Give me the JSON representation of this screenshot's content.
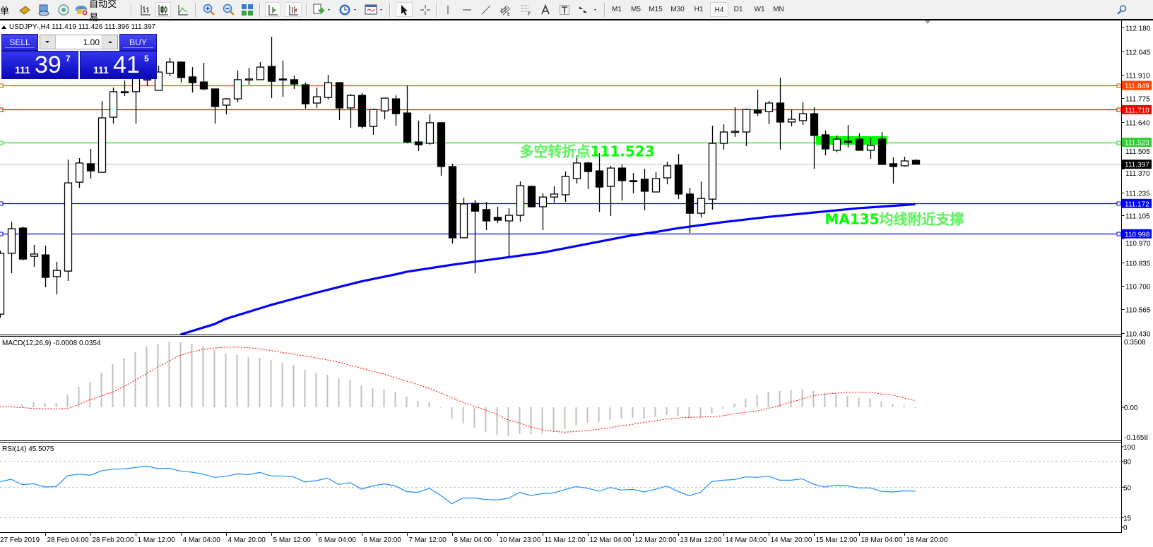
{
  "toolbar": {
    "menu_fragment": "单",
    "auto_trading_label": "自动交易",
    "icons": [
      "market-watch-book-icon",
      "navigator-icon",
      "signals-icon",
      "auto-trading-icon",
      "bar-chart-icon",
      "candlestick-chart-icon",
      "line-chart-icon",
      "zoom-in-icon",
      "zoom-out-icon",
      "tile-windows-icon",
      "auto-scroll-icon",
      "chart-shift-icon",
      "new-indicator-icon",
      "periods-clock-icon",
      "templates-icon",
      "cursor-icon",
      "crosshair-icon",
      "vertical-line-icon",
      "horizontal-line-icon",
      "trendline-icon",
      "fibonacci-channel-icon",
      "fibonacci-retracement-icon",
      "text-icon",
      "text-label-icon",
      "arrows-icon",
      "search-icon"
    ],
    "timeframes": [
      "M1",
      "M5",
      "M15",
      "M30",
      "H1",
      "H4",
      "D1",
      "W1",
      "MN"
    ],
    "active_timeframe": "H4"
  },
  "chart": {
    "header": "USDJPY-,H4  111.419 111.426 111.396 111.397",
    "symbol": "USDJPY-",
    "timeframe": "H4",
    "ohlc": {
      "open": 111.419,
      "high": 111.426,
      "low": 111.396,
      "close": 111.397
    }
  },
  "one_click": {
    "sell_label": "SELL",
    "buy_label": "BUY",
    "lot": "1.00",
    "sell_price": {
      "prefix": "111",
      "big": "39",
      "pip": "7"
    },
    "buy_price": {
      "prefix": "111",
      "big": "41",
      "pip": "5"
    }
  },
  "colors": {
    "bull_body": "#ffffff",
    "bear_body": "#000000",
    "ma": "#0000ff",
    "macd_hist": "#c0c0c0",
    "macd_signal": "#ff0000",
    "rsi": "#1e90ff",
    "annotation": "#00ff00",
    "bid_line": "#c0c0c0"
  },
  "chart_data": {
    "type": "candlestick",
    "price_axis": {
      "range": [
        110.43,
        112.18
      ],
      "ticks": [
        "112.180",
        "112.045",
        "111.910",
        "111.775",
        "111.640",
        "111.505",
        "111.370",
        "111.235",
        "111.105",
        "110.970",
        "110.835",
        "110.700",
        "110.565",
        "110.430"
      ]
    },
    "candles_ohlc": [
      [
        110.537,
        110.902,
        110.517,
        110.886
      ],
      [
        110.886,
        111.068,
        110.772,
        111.027
      ],
      [
        111.031,
        111.039,
        110.845,
        110.853
      ],
      [
        110.869,
        110.934,
        110.809,
        110.882
      ],
      [
        110.877,
        110.93,
        110.691,
        110.748
      ],
      [
        110.752,
        110.837,
        110.651,
        110.788
      ],
      [
        110.784,
        111.424,
        110.728,
        111.29
      ],
      [
        111.294,
        111.432,
        111.262,
        111.404
      ],
      [
        111.4,
        111.485,
        111.315,
        111.359
      ],
      [
        111.351,
        111.76,
        111.351,
        111.663
      ],
      [
        111.667,
        111.837,
        111.63,
        111.813
      ],
      [
        111.813,
        111.877,
        111.788,
        111.809
      ],
      [
        111.813,
        111.955,
        111.63,
        111.918
      ],
      [
        111.882,
        111.914,
        111.845,
        111.886
      ],
      [
        111.821,
        111.962,
        111.821,
        111.926
      ],
      [
        111.918,
        112.007,
        111.902,
        111.983
      ],
      [
        111.983,
        111.987,
        111.865,
        111.894
      ],
      [
        111.898,
        111.954,
        111.809,
        111.865
      ],
      [
        111.869,
        111.979,
        111.821,
        111.829
      ],
      [
        111.829,
        111.829,
        111.63,
        111.728
      ],
      [
        111.736,
        111.776,
        111.683,
        111.772
      ],
      [
        111.772,
        111.934,
        111.752,
        111.882
      ],
      [
        111.882,
        111.95,
        111.853,
        111.886
      ],
      [
        111.882,
        111.983,
        111.882,
        111.954
      ],
      [
        111.958,
        112.128,
        111.776,
        111.873
      ],
      [
        111.886,
        111.991,
        111.784,
        111.882
      ],
      [
        111.882,
        111.906,
        111.829,
        111.857
      ],
      [
        111.853,
        111.865,
        111.716,
        111.744
      ],
      [
        111.748,
        111.837,
        111.72,
        111.784
      ],
      [
        111.78,
        111.91,
        111.768,
        111.865
      ],
      [
        111.865,
        111.869,
        111.651,
        111.72
      ],
      [
        111.72,
        111.8,
        111.606,
        111.792
      ],
      [
        111.792,
        111.805,
        111.602,
        111.614
      ],
      [
        111.614,
        111.716,
        111.566,
        111.711
      ],
      [
        111.703,
        111.78,
        111.655,
        111.776
      ],
      [
        111.772,
        111.792,
        111.618,
        111.687
      ],
      [
        111.691,
        111.849,
        111.517,
        111.525
      ],
      [
        111.525,
        111.647,
        111.473,
        111.509
      ],
      [
        111.517,
        111.683,
        111.509,
        111.635
      ],
      [
        111.635,
        111.639,
        111.331,
        111.384
      ],
      [
        111.384,
        111.4,
        110.942,
        110.975
      ],
      [
        110.975,
        111.205,
        110.975,
        111.169
      ],
      [
        111.173,
        111.193,
        110.772,
        111.128
      ],
      [
        111.137,
        111.181,
        111.019,
        111.072
      ],
      [
        111.092,
        111.153,
        111.06,
        111.076
      ],
      [
        111.072,
        111.145,
        110.869,
        111.104
      ],
      [
        111.104,
        111.298,
        111.068,
        111.274
      ],
      [
        111.27,
        111.274,
        111.149,
        111.153
      ],
      [
        111.153,
        111.23,
        111.019,
        111.209
      ],
      [
        111.209,
        111.27,
        111.177,
        111.226
      ],
      [
        111.222,
        111.355,
        111.181,
        111.327
      ],
      [
        111.315,
        111.448,
        111.286,
        111.404
      ],
      [
        111.404,
        111.412,
        111.254,
        111.355
      ],
      [
        111.359,
        111.46,
        111.124,
        111.266
      ],
      [
        111.27,
        111.388,
        111.1,
        111.375
      ],
      [
        111.375,
        111.396,
        111.189,
        111.303
      ],
      [
        111.303,
        111.347,
        111.23,
        111.299
      ],
      [
        111.311,
        111.371,
        111.133,
        111.242
      ],
      [
        111.238,
        111.351,
        111.238,
        111.315
      ],
      [
        111.319,
        111.412,
        111.282,
        111.388
      ],
      [
        111.392,
        111.456,
        111.197,
        111.226
      ],
      [
        111.226,
        111.262,
        111.003,
        111.116
      ],
      [
        111.116,
        111.298,
        111.092,
        111.201
      ],
      [
        111.197,
        111.618,
        111.137,
        111.517
      ],
      [
        111.517,
        111.626,
        111.481,
        111.582
      ],
      [
        111.582,
        111.724,
        111.554,
        111.586
      ],
      [
        111.582,
        111.716,
        111.501,
        111.711
      ],
      [
        111.707,
        111.825,
        111.675,
        111.691
      ],
      [
        111.699,
        111.76,
        111.626,
        111.748
      ],
      [
        111.748,
        111.894,
        111.481,
        111.639
      ],
      [
        111.639,
        111.711,
        111.614,
        111.655
      ],
      [
        111.647,
        111.752,
        111.622,
        111.687
      ],
      [
        111.687,
        111.724,
        111.371,
        111.562
      ],
      [
        111.566,
        111.59,
        111.448,
        111.485
      ],
      [
        111.477,
        111.562,
        111.465,
        111.541
      ],
      [
        111.529,
        111.622,
        111.493,
        111.525
      ],
      [
        111.541,
        111.574,
        111.477,
        111.477
      ],
      [
        111.477,
        111.55,
        111.428,
        111.505
      ],
      [
        111.541,
        111.582,
        111.392,
        111.396
      ],
      [
        111.4,
        111.436,
        111.286,
        111.384
      ],
      [
        111.388,
        111.44,
        111.384,
        111.416
      ],
      [
        111.419,
        111.426,
        111.396,
        111.397
      ]
    ],
    "ma135": [
      [
        16,
        110.42
      ],
      [
        19,
        110.48
      ],
      [
        20,
        110.51
      ],
      [
        24,
        110.59
      ],
      [
        26,
        110.625
      ],
      [
        28,
        110.66
      ],
      [
        32,
        110.725
      ],
      [
        35,
        110.765
      ],
      [
        36,
        110.78
      ],
      [
        40,
        110.82
      ],
      [
        44,
        110.855
      ],
      [
        48,
        110.89
      ],
      [
        52,
        110.94
      ],
      [
        56,
        110.99
      ],
      [
        58,
        111.008
      ],
      [
        60,
        111.03
      ],
      [
        64,
        111.065
      ],
      [
        68,
        111.095
      ],
      [
        72,
        111.12
      ],
      [
        76,
        111.145
      ],
      [
        80,
        111.163
      ],
      [
        81,
        111.168
      ]
    ],
    "horizontal_lines": [
      {
        "price": 111.849,
        "label": "111.849",
        "color": "#ff4500"
      },
      {
        "price": 111.71,
        "label": "111.710",
        "color": "#ff0000"
      },
      {
        "price": 111.523,
        "label": "111.523",
        "color": "#32cd32"
      },
      {
        "price": 111.172,
        "label": "111.172",
        "color": "#0000ff"
      },
      {
        "price": 110.998,
        "label": "110.998",
        "color": "#0000ff"
      }
    ],
    "bid": {
      "price": 111.397,
      "label": "111.397"
    },
    "rectangle": {
      "bars": [
        72.2,
        78.5
      ],
      "prices": [
        111.558,
        111.509
      ],
      "color": "#00ff00"
    },
    "annotations": [
      {
        "text": "多空转折点111.523",
        "bar": 46,
        "price": 111.523
      },
      {
        "text": "MA135均线附近支撑",
        "bar": 73,
        "price": 111.135
      }
    ],
    "x_labels": [
      {
        "bar": 0,
        "label": "27 Feb 2019"
      },
      {
        "bar": 4,
        "label": "28 Feb 04:00"
      },
      {
        "bar": 8,
        "label": "28 Feb 20:00"
      },
      {
        "bar": 12,
        "label": "1 Mar 12:00"
      },
      {
        "bar": 16,
        "label": "4 Mar 04:00"
      },
      {
        "bar": 20,
        "label": "4 Mar 20:00"
      },
      {
        "bar": 24,
        "label": "5 Mar 12:00"
      },
      {
        "bar": 28,
        "label": "6 Mar 04:00"
      },
      {
        "bar": 32,
        "label": "6 Mar 20:00"
      },
      {
        "bar": 36,
        "label": "7 Mar 12:00"
      },
      {
        "bar": 40,
        "label": "8 Mar 04:00"
      },
      {
        "bar": 44,
        "label": "10 Mar 23:00"
      },
      {
        "bar": 48,
        "label": "11 Mar 12:00"
      },
      {
        "bar": 52,
        "label": "12 Mar 04:00"
      },
      {
        "bar": 56,
        "label": "12 Mar 20:00"
      },
      {
        "bar": 60,
        "label": "13 Mar 12:00"
      },
      {
        "bar": 64,
        "label": "14 Mar 04:00"
      },
      {
        "bar": 68,
        "label": "14 Mar 20:00"
      },
      {
        "bar": 72,
        "label": "15 Mar 12:00"
      },
      {
        "bar": 76,
        "label": "18 Mar 04:00"
      },
      {
        "bar": 80,
        "label": "18 Mar 20:00"
      }
    ],
    "macd": {
      "label": "MACD(12,26,9) -0.0008 0.0354",
      "range": [
        -0.1658,
        0.3508
      ],
      "axis_labels": [
        {
          "value": 0.3508,
          "label": "0.3508"
        },
        {
          "value": 0,
          "label": "0.00"
        },
        {
          "value": -0.1658,
          "label": "-0.1658"
        }
      ],
      "histogram": [
        0.003,
        0.004,
        0.015,
        0.027,
        0.022,
        0.022,
        0.067,
        0.108,
        0.134,
        0.183,
        0.228,
        0.261,
        0.291,
        0.321,
        0.336,
        0.347,
        0.343,
        0.336,
        0.325,
        0.302,
        0.284,
        0.276,
        0.265,
        0.261,
        0.25,
        0.235,
        0.224,
        0.198,
        0.183,
        0.172,
        0.153,
        0.142,
        0.116,
        0.101,
        0.093,
        0.082,
        0.056,
        0.034,
        0.026,
        0.001,
        -0.06,
        -0.086,
        -0.108,
        -0.131,
        -0.146,
        -0.153,
        -0.142,
        -0.142,
        -0.138,
        -0.131,
        -0.116,
        -0.097,
        -0.082,
        -0.078,
        -0.067,
        -0.06,
        -0.056,
        -0.06,
        -0.052,
        -0.041,
        -0.045,
        -0.056,
        -0.056,
        -0.034,
        -0.007,
        0.019,
        0.046,
        0.065,
        0.083,
        0.087,
        0.091,
        0.095,
        0.087,
        0.076,
        0.069,
        0.061,
        0.051,
        0.046,
        0.031,
        0.017,
        0.009,
        -0.0008
      ],
      "signal": [
        0.004,
        0.002,
        -0.002,
        -0.006,
        -0.008,
        -0.009,
        -0.006,
        0.015,
        0.04,
        0.06,
        0.08,
        0.11,
        0.144,
        0.178,
        0.213,
        0.245,
        0.275,
        0.293,
        0.306,
        0.313,
        0.318,
        0.318,
        0.315,
        0.308,
        0.3,
        0.29,
        0.28,
        0.271,
        0.262,
        0.25,
        0.238,
        0.222,
        0.206,
        0.19,
        0.175,
        0.157,
        0.138,
        0.12,
        0.1,
        0.075,
        0.05,
        0.025,
        0.005,
        -0.015,
        -0.039,
        -0.067,
        -0.083,
        -0.104,
        -0.119,
        -0.127,
        -0.132,
        -0.128,
        -0.124,
        -0.116,
        -0.108,
        -0.098,
        -0.09,
        -0.08,
        -0.072,
        -0.063,
        -0.057,
        -0.053,
        -0.052,
        -0.05,
        -0.045,
        -0.035,
        -0.026,
        -0.02,
        -0.006,
        0.009,
        0.027,
        0.044,
        0.061,
        0.07,
        0.074,
        0.079,
        0.08,
        0.079,
        0.07,
        0.065,
        0.049,
        0.0354
      ]
    },
    "rsi": {
      "label": "RSI(14) 45.5075",
      "range": [
        0,
        100
      ],
      "levels": [
        80,
        50,
        15
      ],
      "axis_labels": [
        {
          "value": 100,
          "label": "100"
        },
        {
          "value": 80,
          "label": "80"
        },
        {
          "value": 50,
          "label": "50"
        },
        {
          "value": 15,
          "label": "15"
        },
        {
          "value": 0,
          "label": "0"
        }
      ],
      "values": [
        56.2,
        59.2,
        53,
        54,
        50.3,
        50.8,
        63.2,
        65.1,
        63.8,
        68.9,
        70.8,
        71.1,
        72.7,
        74.3,
        71.4,
        71.9,
        68.6,
        67.3,
        65.1,
        61.4,
        62.4,
        65.4,
        64.6,
        67,
        63,
        63,
        61.9,
        56.2,
        57.6,
        60.5,
        53.2,
        55.4,
        47.8,
        51.6,
        53.8,
        51.6,
        44.9,
        44.1,
        48.9,
        40.8,
        31.1,
        37.6,
        37.6,
        35.9,
        35.4,
        37.3,
        44.1,
        40.5,
        42.7,
        43.5,
        47.3,
        50.8,
        48.9,
        45.4,
        49.7,
        46.8,
        47.6,
        44.6,
        47.6,
        51.4,
        45.4,
        40.3,
        44.1,
        56.5,
        58.1,
        58.9,
        61.9,
        61.4,
        62.7,
        58.1,
        58.1,
        59.7,
        53.5,
        50.3,
        52.4,
        51.6,
        49.2,
        49.2,
        45.4,
        44.6,
        45.9,
        45.5075
      ]
    }
  }
}
